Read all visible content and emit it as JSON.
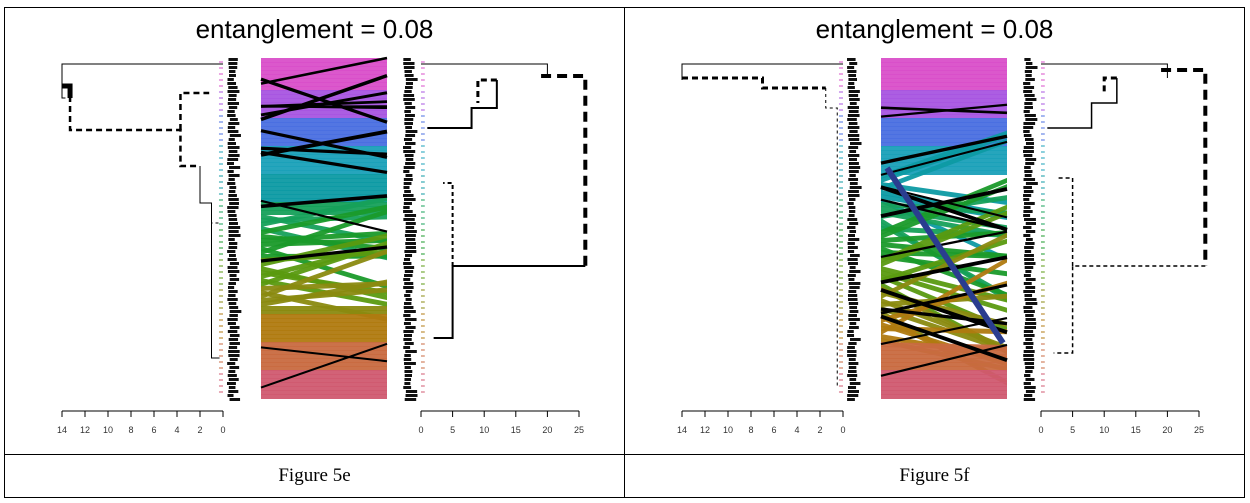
{
  "panels": [
    {
      "title": "entanglement = 0.08",
      "caption": "Figure 5e",
      "left_axis": {
        "ticks": [
          "14",
          "12",
          "10",
          "8",
          "6",
          "4",
          "2",
          "0"
        ],
        "values": [
          14,
          12,
          10,
          8,
          6,
          4,
          2,
          0
        ]
      },
      "right_axis": {
        "ticks": [
          "0",
          "5",
          "10",
          "15",
          "20",
          "25"
        ],
        "values": [
          0,
          5,
          10,
          15,
          20,
          25
        ]
      }
    },
    {
      "title": "entanglement = 0.08",
      "caption": "Figure 5f",
      "left_axis": {
        "ticks": [
          "14",
          "12",
          "10",
          "8",
          "6",
          "4",
          "2",
          "0"
        ],
        "values": [
          14,
          12,
          10,
          8,
          6,
          4,
          2,
          0
        ]
      },
      "right_axis": {
        "ticks": [
          "0",
          "5",
          "10",
          "15",
          "20",
          "25"
        ],
        "values": [
          0,
          5,
          10,
          15,
          20,
          25
        ]
      }
    }
  ],
  "colors": {
    "gradient": [
      "#d94fc9",
      "#a855e0",
      "#4a6fe0",
      "#1aa0b8",
      "#0d9aa3",
      "#16a05a",
      "#1a9a2a",
      "#5a9a10",
      "#8a8a10",
      "#b07a10",
      "#c86a40",
      "#d05a70"
    ],
    "line": "#000000"
  }
}
